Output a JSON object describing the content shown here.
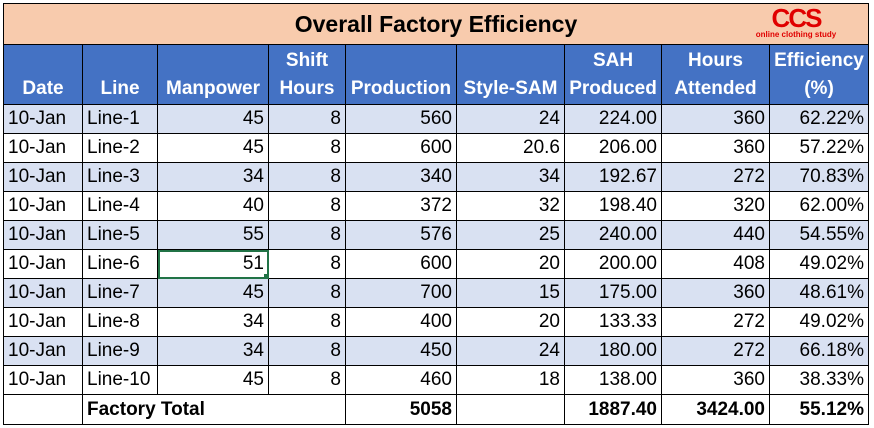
{
  "title": "Overall Factory Efficiency",
  "logo": {
    "mark": "CCS",
    "tagline": "online clothing study"
  },
  "headers": {
    "date": "Date",
    "line": "Line",
    "manpower": "Manpower",
    "shift_hours_1": "Shift",
    "shift_hours_2": "Hours",
    "production": "Production",
    "style_sam": "Style-SAM",
    "sah_1": "SAH",
    "sah_2": "Produced",
    "hours_1": "Hours",
    "hours_2": "Attended",
    "eff_1": "Efficiency",
    "eff_2": "(%)"
  },
  "rows": [
    {
      "date": "10-Jan",
      "line": "Line-1",
      "manpower": "45",
      "shift": "8",
      "production": "560",
      "sam": "24",
      "sah": "224.00",
      "hours": "360",
      "eff": "62.22%"
    },
    {
      "date": "10-Jan",
      "line": "Line-2",
      "manpower": "45",
      "shift": "8",
      "production": "600",
      "sam": "20.6",
      "sah": "206.00",
      "hours": "360",
      "eff": "57.22%"
    },
    {
      "date": "10-Jan",
      "line": "Line-3",
      "manpower": "34",
      "shift": "8",
      "production": "340",
      "sam": "34",
      "sah": "192.67",
      "hours": "272",
      "eff": "70.83%"
    },
    {
      "date": "10-Jan",
      "line": "Line-4",
      "manpower": "40",
      "shift": "8",
      "production": "372",
      "sam": "32",
      "sah": "198.40",
      "hours": "320",
      "eff": "62.00%"
    },
    {
      "date": "10-Jan",
      "line": "Line-5",
      "manpower": "55",
      "shift": "8",
      "production": "576",
      "sam": "25",
      "sah": "240.00",
      "hours": "440",
      "eff": "54.55%"
    },
    {
      "date": "10-Jan",
      "line": "Line-6",
      "manpower": "51",
      "shift": "8",
      "production": "600",
      "sam": "20",
      "sah": "200.00",
      "hours": "408",
      "eff": "49.02%"
    },
    {
      "date": "10-Jan",
      "line": "Line-7",
      "manpower": "45",
      "shift": "8",
      "production": "700",
      "sam": "15",
      "sah": "175.00",
      "hours": "360",
      "eff": "48.61%"
    },
    {
      "date": "10-Jan",
      "line": "Line-8",
      "manpower": "34",
      "shift": "8",
      "production": "400",
      "sam": "20",
      "sah": "133.33",
      "hours": "272",
      "eff": "49.02%"
    },
    {
      "date": "10-Jan",
      "line": "Line-9",
      "manpower": "34",
      "shift": "8",
      "production": "450",
      "sam": "24",
      "sah": "180.00",
      "hours": "272",
      "eff": "66.18%"
    },
    {
      "date": "10-Jan",
      "line": "Line-10",
      "manpower": "45",
      "shift": "8",
      "production": "460",
      "sam": "18",
      "sah": "138.00",
      "hours": "360",
      "eff": "38.33%"
    }
  ],
  "total": {
    "label": "Factory Total",
    "production": "5058",
    "sah": "1887.40",
    "hours": "3424.00",
    "eff": "55.12%"
  },
  "colors": {
    "title_bg": "#f8cbad",
    "header_bg": "#4472c4",
    "band_bg": "#d9e1f2",
    "logo": "#e00000",
    "selection": "#217346"
  }
}
